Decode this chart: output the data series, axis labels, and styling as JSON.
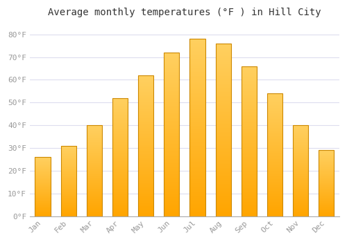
{
  "title": "Average monthly temperatures (°F ) in Hill City",
  "months": [
    "Jan",
    "Feb",
    "Mar",
    "Apr",
    "May",
    "Jun",
    "Jul",
    "Aug",
    "Sep",
    "Oct",
    "Nov",
    "Dec"
  ],
  "values": [
    26,
    31,
    40,
    52,
    62,
    72,
    78,
    76,
    66,
    54,
    40,
    29
  ],
  "bar_color_bottom": "#FFA500",
  "bar_color_top": "#FFD060",
  "bar_edge_color": "#CC8800",
  "ylim": [
    0,
    85
  ],
  "yticks": [
    0,
    10,
    20,
    30,
    40,
    50,
    60,
    70,
    80
  ],
  "ytick_labels": [
    "0°F",
    "10°F",
    "20°F",
    "30°F",
    "40°F",
    "50°F",
    "60°F",
    "70°F",
    "80°F"
  ],
  "background_color": "#FFFFFF",
  "plot_bg_color": "#FFFFFF",
  "grid_color": "#DDDDEE",
  "title_fontsize": 10,
  "tick_fontsize": 8,
  "font_family": "monospace",
  "tick_color": "#999999"
}
